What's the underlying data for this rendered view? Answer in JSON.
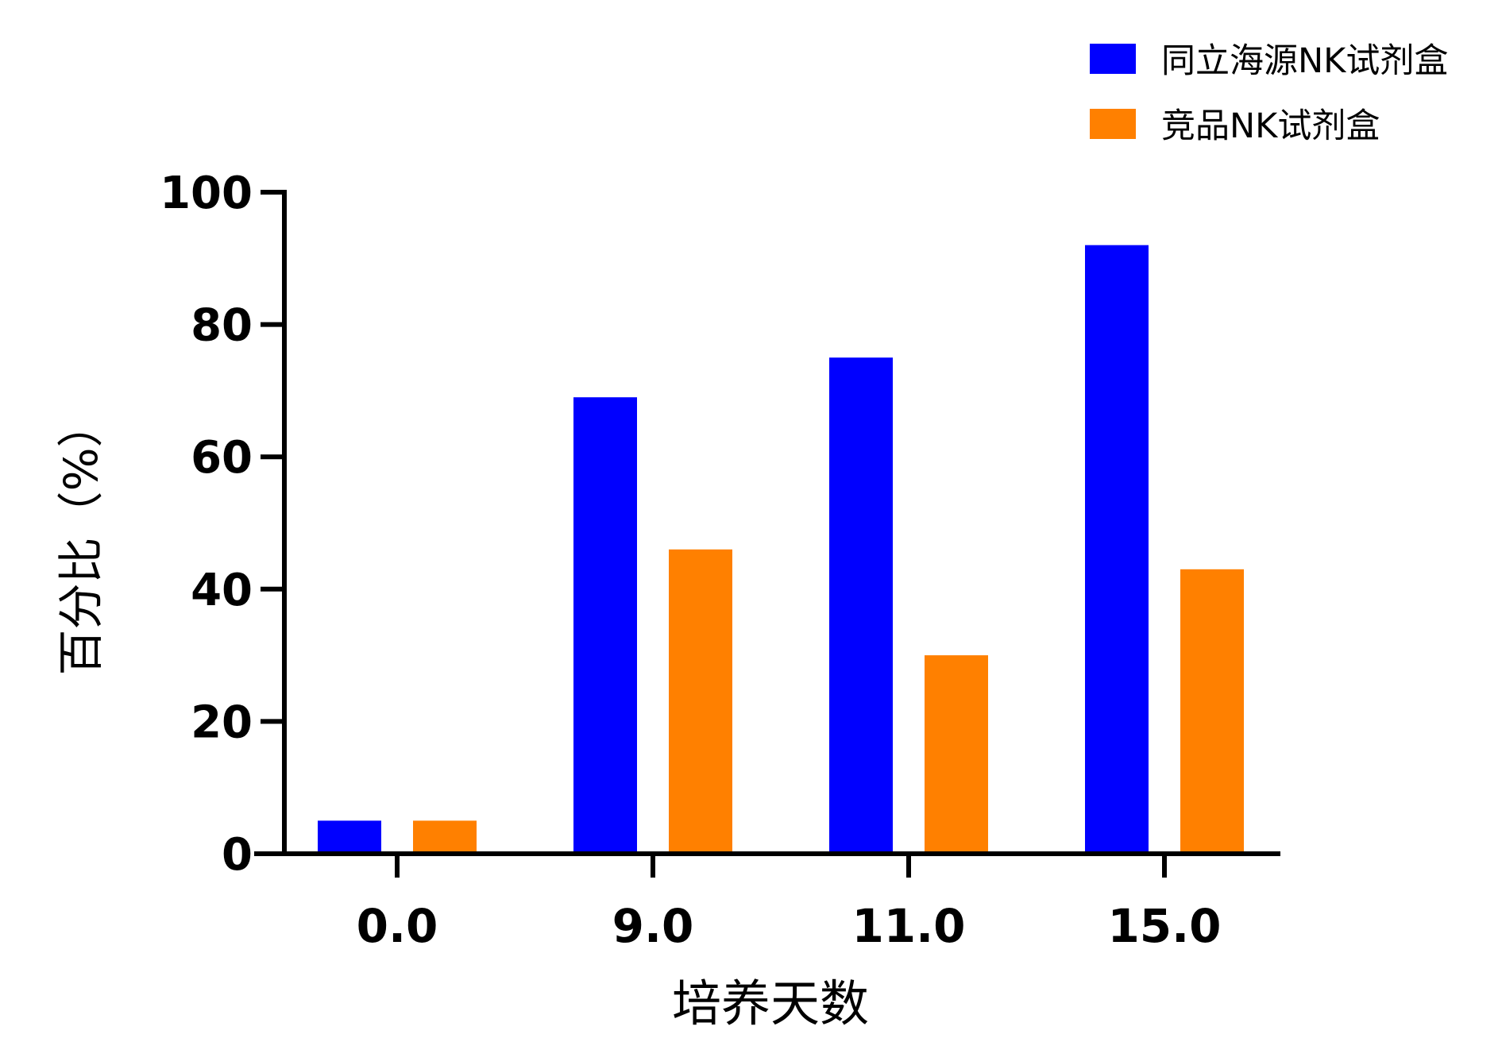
{
  "chart_data": {
    "type": "bar",
    "title": "",
    "xlabel": "培养天数",
    "ylabel": "百分比（%）",
    "ylim": [
      0,
      100
    ],
    "yticks": [
      0,
      20,
      40,
      60,
      80,
      100
    ],
    "categories": [
      "0.0",
      "9.0",
      "11.0",
      "15.0"
    ],
    "legend_position": "top-right",
    "grid": false,
    "series": [
      {
        "name": "同立海源NK试剂盒",
        "color": "#0000ff",
        "values": [
          5,
          69,
          75,
          92
        ]
      },
      {
        "name": "竞品NK试剂盒",
        "color": "#ff8000",
        "values": [
          5,
          46,
          30,
          43
        ]
      }
    ]
  }
}
